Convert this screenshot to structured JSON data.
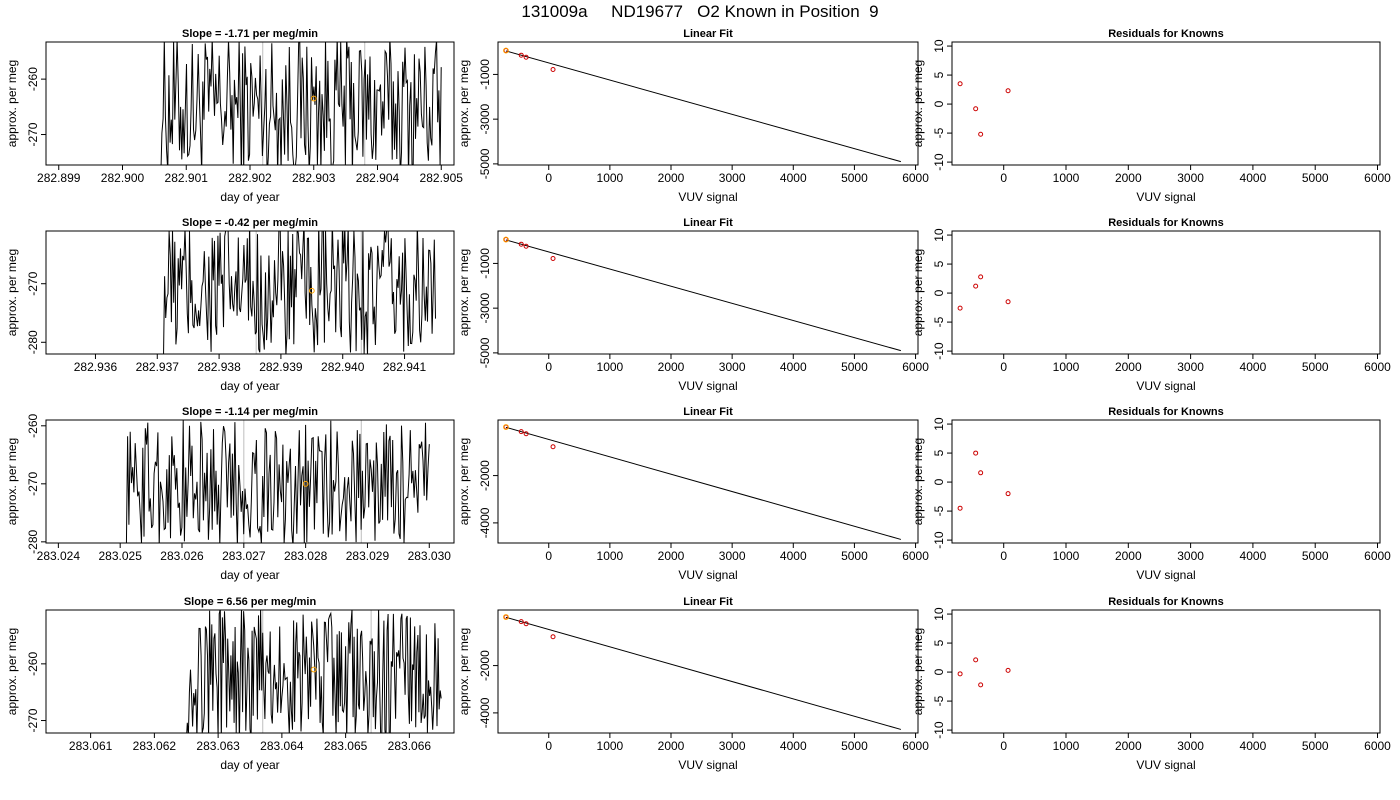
{
  "title": "131009a     ND19677   O2 Known in Position  9",
  "colors": {
    "trace": "#000000",
    "known_marker": "#ffa500",
    "fit_point": "#cc0000",
    "fit_line": "#000000",
    "frame": "#000000",
    "vline": "#bebebe"
  },
  "chart_data": [
    {
      "type": "line",
      "title": "Slope =  -1.71  per meg/min",
      "xlabel": "day of year",
      "ylabel": "approx. per meg",
      "xlim": [
        282.8988,
        282.9052
      ],
      "ylim": [
        -275.5,
        -253.3
      ],
      "xticks": [
        "282.899",
        "282.900",
        "282.901",
        "282.902",
        "282.903",
        "282.904",
        "282.905"
      ],
      "yticks": [
        -270,
        -260
      ],
      "vlines": [
        282.9022,
        282.9038
      ],
      "trace_x_range": [
        282.9006,
        282.905
      ],
      "trace_center": -265,
      "trace_amp": 13,
      "marker": {
        "x": 282.903,
        "y": -263.5
      }
    },
    {
      "type": "scatter",
      "title": "Linear Fit",
      "xlabel": "VUV signal",
      "ylabel": "approx. per meg",
      "xlim": [
        -830,
        6040
      ],
      "ylim": [
        -5050,
        450
      ],
      "xticks": [
        0,
        1000,
        2000,
        3000,
        4000,
        5000,
        6000
      ],
      "yticks": [
        -5000,
        -3000,
        -1000
      ],
      "points": [
        [
          -700,
          68
        ],
        [
          -450,
          -140
        ],
        [
          -370,
          -230
        ],
        [
          70,
          -780
        ]
      ],
      "line": [
        [
          -700,
          50
        ],
        [
          5760,
          -4900
        ]
      ]
    },
    {
      "type": "scatter",
      "title": "Residuals for Knowns",
      "xlabel": "VUV signal",
      "ylabel": "approx. per meg",
      "xlim": [
        -830,
        6040
      ],
      "ylim": [
        -10.5,
        10.7
      ],
      "xticks": [
        0,
        1000,
        2000,
        3000,
        4000,
        5000,
        6000
      ],
      "yticks": [
        -10,
        -5,
        0,
        5,
        10
      ],
      "points": [
        [
          -700,
          3.5
        ],
        [
          -450,
          -0.8
        ],
        [
          -370,
          -5.2
        ],
        [
          70,
          2.3
        ]
      ]
    },
    {
      "type": "line",
      "title": "Slope =  -0.42  per meg/min",
      "xlabel": "day of year",
      "ylabel": "approx. per meg",
      "xlim": [
        282.9352,
        282.9418
      ],
      "ylim": [
        -282,
        -261
      ],
      "xticks": [
        "282.936",
        "282.937",
        "282.938",
        "282.939",
        "282.940",
        "282.941"
      ],
      "yticks": [
        -280,
        -270
      ],
      "vlines": [
        282.9386,
        282.9403
      ],
      "trace_x_range": [
        282.9371,
        282.9415
      ],
      "trace_center": -271,
      "trace_amp": 12,
      "marker": {
        "x": 282.9395,
        "y": -271.2
      }
    },
    {
      "type": "scatter",
      "title": "Linear Fit",
      "xlabel": "VUV signal",
      "ylabel": "approx. per meg",
      "xlim": [
        -830,
        6040
      ],
      "ylim": [
        -5050,
        450
      ],
      "xticks": [
        0,
        1000,
        2000,
        3000,
        4000,
        5000,
        6000
      ],
      "yticks": [
        -5000,
        -3000,
        -1000
      ],
      "points": [
        [
          -700,
          68
        ],
        [
          -450,
          -140
        ],
        [
          -370,
          -230
        ],
        [
          70,
          -780
        ]
      ],
      "line": [
        [
          -700,
          50
        ],
        [
          5760,
          -4900
        ]
      ]
    },
    {
      "type": "scatter",
      "title": "Residuals for Knowns",
      "xlabel": "VUV signal",
      "ylabel": "approx. per meg",
      "xlim": [
        -830,
        6040
      ],
      "ylim": [
        -10.5,
        10.7
      ],
      "xticks": [
        0,
        1000,
        2000,
        3000,
        4000,
        5000,
        6000
      ],
      "yticks": [
        -10,
        -5,
        0,
        5,
        10
      ],
      "points": [
        [
          -700,
          -2.6
        ],
        [
          -450,
          1.2
        ],
        [
          -370,
          2.8
        ],
        [
          70,
          -1.5
        ]
      ]
    },
    {
      "type": "line",
      "title": "Slope =  -1.14  per meg/min",
      "xlabel": "day of year",
      "ylabel": "approx. per meg",
      "xlim": [
        283.0238,
        283.0304
      ],
      "ylim": [
        -280.2,
        -259
      ],
      "xticks": [
        "283.024",
        "283.025",
        "283.026",
        "283.027",
        "283.028",
        "283.029",
        "283.030"
      ],
      "yticks": [
        -280,
        -270,
        -260
      ],
      "vlines": [
        283.027,
        283.0289
      ],
      "trace_x_range": [
        283.0251,
        283.03
      ],
      "trace_center": -270,
      "trace_amp": 11,
      "marker": {
        "x": 283.028,
        "y": -270.0
      }
    },
    {
      "type": "scatter",
      "title": "Linear Fit",
      "xlabel": "VUV signal",
      "ylabel": "approx. per meg",
      "xlim": [
        -830,
        6040
      ],
      "ylim": [
        -4850,
        350
      ],
      "xticks": [
        0,
        1000,
        2000,
        3000,
        4000,
        5000,
        6000
      ],
      "yticks": [
        -4000,
        -2000
      ],
      "points": [
        [
          -700,
          52
        ],
        [
          -450,
          -140
        ],
        [
          -370,
          -230
        ],
        [
          70,
          -780
        ]
      ],
      "line": [
        [
          -700,
          40
        ],
        [
          5760,
          -4700
        ]
      ]
    },
    {
      "type": "scatter",
      "title": "Residuals for Knowns",
      "xlabel": "VUV signal",
      "ylabel": "approx. per meg",
      "xlim": [
        -830,
        6040
      ],
      "ylim": [
        -10.5,
        10.7
      ],
      "xticks": [
        0,
        1000,
        2000,
        3000,
        4000,
        5000,
        6000
      ],
      "yticks": [
        -10,
        -5,
        0,
        5,
        10
      ],
      "points": [
        [
          -700,
          -4.5
        ],
        [
          -450,
          5.0
        ],
        [
          -370,
          1.6
        ],
        [
          70,
          -2.0
        ]
      ]
    },
    {
      "type": "line",
      "title": "Slope =  6.56  per meg/min",
      "xlabel": "day of year",
      "ylabel": "approx. per meg",
      "xlim": [
        283.0603,
        283.0667
      ],
      "ylim": [
        -272.2,
        -250.5
      ],
      "xticks": [
        "283.061",
        "283.062",
        "283.063",
        "283.064",
        "283.065",
        "283.066"
      ],
      "yticks": [
        -270,
        -260
      ],
      "vlines": [
        283.0637,
        283.0654
      ],
      "trace_x_range": [
        283.0625,
        283.0665
      ],
      "trace_center": -262,
      "trace_amp": 12,
      "marker": {
        "x": 283.0645,
        "y": -261.0
      }
    },
    {
      "type": "scatter",
      "title": "Linear Fit",
      "xlabel": "VUV signal",
      "ylabel": "approx. per meg",
      "xlim": [
        -830,
        6040
      ],
      "ylim": [
        -4850,
        350
      ],
      "xticks": [
        0,
        1000,
        2000,
        3000,
        4000,
        5000,
        6000
      ],
      "yticks": [
        -4000,
        -2000
      ],
      "points": [
        [
          -700,
          52
        ],
        [
          -450,
          -140
        ],
        [
          -370,
          -230
        ],
        [
          70,
          -780
        ]
      ],
      "line": [
        [
          -700,
          40
        ],
        [
          5760,
          -4700
        ]
      ]
    },
    {
      "type": "scatter",
      "title": "Residuals for Knowns",
      "xlabel": "VUV signal",
      "ylabel": "approx. per meg",
      "xlim": [
        -830,
        6040
      ],
      "ylim": [
        -10.5,
        10.7
      ],
      "xticks": [
        0,
        1000,
        2000,
        3000,
        4000,
        5000,
        6000
      ],
      "yticks": [
        -10,
        -5,
        0,
        5,
        10
      ],
      "points": [
        [
          -700,
          -0.3
        ],
        [
          -450,
          2.1
        ],
        [
          -370,
          -2.2
        ],
        [
          70,
          0.3
        ]
      ]
    }
  ]
}
